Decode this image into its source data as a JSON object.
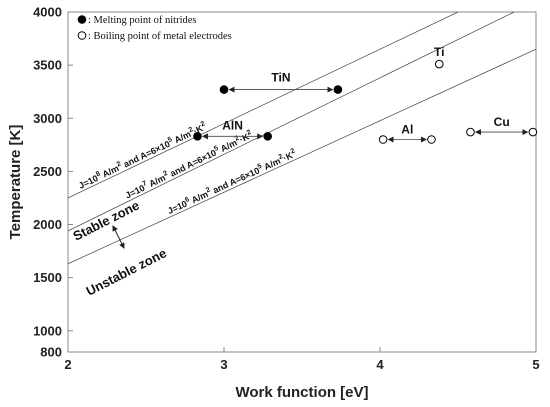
{
  "chart_data": {
    "type": "scatter",
    "xlabel": "Work function [eV]",
    "ylabel": "Temperature [K]",
    "xlim": [
      2,
      5
    ],
    "ylim": [
      800,
      4000
    ],
    "x_ticks": [
      2,
      3,
      4,
      5
    ],
    "y_ticks": [
      800,
      1000,
      1500,
      2000,
      2500,
      3000,
      3500,
      4000
    ],
    "grid": false,
    "legend_placement": "top-left",
    "legend": [
      {
        "marker": "filled-circle",
        "label": "Melting point of nitrides"
      },
      {
        "marker": "open-circle",
        "label": "Boiling point of metal electrodes"
      }
    ],
    "series": [
      {
        "name": "Melting point of nitrides",
        "marker": "filled",
        "pairs": [
          {
            "label": "TiN",
            "points": [
              [
                3.0,
                3270
              ],
              [
                3.73,
                3270
              ]
            ]
          },
          {
            "label": "AlN",
            "points": [
              [
                2.83,
                2830
              ],
              [
                3.28,
                2830
              ]
            ]
          }
        ]
      },
      {
        "name": "Boiling point of metal electrodes",
        "marker": "open",
        "pairs": [
          {
            "label": "Ti",
            "points": [
              [
                4.38,
                3510
              ]
            ]
          },
          {
            "label": "Al",
            "points": [
              [
                4.02,
                2800
              ],
              [
                4.33,
                2800
              ]
            ]
          },
          {
            "label": "Cu",
            "points": [
              [
                4.58,
                2870
              ],
              [
                4.98,
                2870
              ]
            ]
          }
        ]
      }
    ],
    "lines": [
      {
        "label_main": "J=10",
        "label_exp": "8",
        "label_tail": " A/m",
        "label_unit_exp": "2",
        "label_rest": " and A=6×10",
        "label_a_exp": "5",
        "label_end": " A/m",
        "label_end_exp": "2",
        "label_k": "·K",
        "label_k_exp": "2",
        "points": [
          [
            2,
            2250
          ],
          [
            4.5,
            4000
          ]
        ]
      },
      {
        "label_main": "J=10",
        "label_exp": "7",
        "label_tail": " A/m",
        "label_unit_exp": "2",
        "label_rest": " and A=6×10",
        "label_a_exp": "5",
        "label_end": " A/m",
        "label_end_exp": "2",
        "label_k": "·K",
        "label_k_exp": "2",
        "points": [
          [
            2,
            1940
          ],
          [
            4.86,
            4000
          ]
        ]
      },
      {
        "label_main": "J=10",
        "label_exp": "6",
        "label_tail": " A/m",
        "label_unit_exp": "2",
        "label_rest": " and A=6×10",
        "label_a_exp": "5",
        "label_end": " A/m",
        "label_end_exp": "2",
        "label_k": "·K",
        "label_k_exp": "2",
        "points": [
          [
            2,
            1630
          ],
          [
            5,
            3650
          ]
        ]
      }
    ],
    "annotations": {
      "stable_zone": "Stable zone",
      "unstable_zone": "Unstable zone"
    }
  }
}
